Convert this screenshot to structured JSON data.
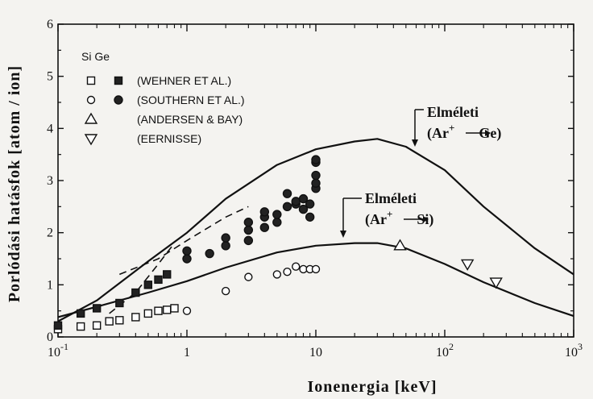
{
  "chart_data": {
    "type": "scatter",
    "xscale": "log",
    "xlim": [
      0.1,
      1000
    ],
    "ylim": [
      0,
      6
    ],
    "xlabel": "Ionenergia  [keV]",
    "ylabel": "Porlódási hatásfok  [atom / ion]",
    "x_ticks": [
      {
        "value": 0.1,
        "base": "10",
        "exp": "-1"
      },
      {
        "value": 1,
        "base": "1",
        "exp": ""
      },
      {
        "value": 10,
        "base": "10",
        "exp": ""
      },
      {
        "value": 100,
        "base": "10",
        "exp": "2"
      },
      {
        "value": 1000,
        "base": "10",
        "exp": "3"
      }
    ],
    "y_ticks": [
      "0",
      "1",
      "2",
      "3",
      "4",
      "5",
      "6"
    ],
    "legend": {
      "header": "Si Ge",
      "entries": [
        {
          "label": "(WEHNER ET AL.)",
          "markers": [
            "open-square",
            "filled-square"
          ]
        },
        {
          "label": "(SOUTHERN ET AL.)",
          "markers": [
            "open-circle",
            "filled-circle"
          ]
        },
        {
          "label": "(ANDERSEN & BAY)",
          "markers": [
            "open-triangle-up"
          ]
        },
        {
          "label": "(EERNISSE)",
          "markers": [
            "open-triangle-down"
          ]
        }
      ]
    },
    "series": [
      {
        "name": "(WEHNER ET AL.)",
        "target": "Si",
        "marker": "open-square",
        "points": [
          [
            0.1,
            0.15
          ],
          [
            0.15,
            0.2
          ],
          [
            0.2,
            0.22
          ],
          [
            0.25,
            0.3
          ],
          [
            0.3,
            0.32
          ],
          [
            0.4,
            0.38
          ],
          [
            0.5,
            0.45
          ],
          [
            0.6,
            0.5
          ],
          [
            0.7,
            0.52
          ],
          [
            0.8,
            0.55
          ]
        ]
      },
      {
        "name": "(WEHNER ET AL.)",
        "target": "Ge",
        "marker": "filled-square",
        "points": [
          [
            0.1,
            0.22
          ],
          [
            0.15,
            0.45
          ],
          [
            0.2,
            0.55
          ],
          [
            0.3,
            0.65
          ],
          [
            0.4,
            0.85
          ],
          [
            0.5,
            1.0
          ],
          [
            0.6,
            1.1
          ],
          [
            0.7,
            1.2
          ]
        ]
      },
      {
        "name": "(SOUTHERN ET AL.)",
        "target": "Si",
        "marker": "open-circle",
        "points": [
          [
            1,
            0.5
          ],
          [
            2,
            0.88
          ],
          [
            3,
            1.15
          ],
          [
            5,
            1.2
          ],
          [
            6,
            1.25
          ],
          [
            7,
            1.35
          ],
          [
            8,
            1.3
          ],
          [
            9,
            1.3
          ],
          [
            10,
            1.3
          ]
        ]
      },
      {
        "name": "(SOUTHERN ET AL.)",
        "target": "Ge",
        "marker": "filled-circle",
        "points": [
          [
            1,
            1.5
          ],
          [
            1,
            1.65
          ],
          [
            1.5,
            1.6
          ],
          [
            2,
            1.75
          ],
          [
            2,
            1.9
          ],
          [
            3,
            1.85
          ],
          [
            3,
            2.05
          ],
          [
            3,
            2.2
          ],
          [
            4,
            2.1
          ],
          [
            4,
            2.3
          ],
          [
            4,
            2.4
          ],
          [
            5,
            2.2
          ],
          [
            5,
            2.35
          ],
          [
            6,
            2.5
          ],
          [
            6,
            2.75
          ],
          [
            7,
            2.55
          ],
          [
            7,
            2.6
          ],
          [
            8,
            2.45
          ],
          [
            8,
            2.65
          ],
          [
            9,
            2.3
          ],
          [
            9,
            2.55
          ],
          [
            10,
            2.85
          ],
          [
            10,
            2.95
          ],
          [
            10,
            3.1
          ],
          [
            10,
            3.35
          ],
          [
            10,
            3.4
          ]
        ]
      },
      {
        "name": "(ANDERSEN & BAY)",
        "target": "Si",
        "marker": "open-triangle-up",
        "points": [
          [
            45,
            1.75
          ]
        ]
      },
      {
        "name": "(EERNISSE)",
        "target": "Ge",
        "marker": "open-triangle-down",
        "points": [
          [
            150,
            1.4
          ],
          [
            250,
            1.05
          ]
        ]
      }
    ],
    "curves": [
      {
        "name": "Elméleti Ge",
        "style": "solid",
        "points": [
          [
            0.1,
            0.3
          ],
          [
            0.2,
            0.7
          ],
          [
            0.5,
            1.45
          ],
          [
            1,
            2.0
          ],
          [
            2,
            2.65
          ],
          [
            5,
            3.3
          ],
          [
            10,
            3.6
          ],
          [
            20,
            3.75
          ],
          [
            30,
            3.8
          ],
          [
            50,
            3.65
          ],
          [
            100,
            3.2
          ],
          [
            200,
            2.5
          ],
          [
            500,
            1.7
          ],
          [
            1000,
            1.2
          ]
        ]
      },
      {
        "name": "Elméleti Si",
        "style": "solid",
        "points": [
          [
            0.1,
            0.38
          ],
          [
            0.2,
            0.58
          ],
          [
            0.5,
            0.85
          ],
          [
            1,
            1.07
          ],
          [
            2,
            1.33
          ],
          [
            5,
            1.62
          ],
          [
            10,
            1.75
          ],
          [
            20,
            1.8
          ],
          [
            30,
            1.8
          ],
          [
            50,
            1.7
          ],
          [
            100,
            1.4
          ],
          [
            200,
            1.05
          ],
          [
            500,
            0.65
          ],
          [
            1000,
            0.4
          ]
        ]
      },
      {
        "name": "dashed-a",
        "style": "dashed",
        "points": [
          [
            0.25,
            0.45
          ],
          [
            0.4,
            0.85
          ],
          [
            0.6,
            1.4
          ],
          [
            0.8,
            1.8
          ]
        ]
      },
      {
        "name": "dashed-b",
        "style": "dashed",
        "points": [
          [
            0.3,
            1.2
          ],
          [
            0.6,
            1.5
          ],
          [
            1,
            1.85
          ],
          [
            2,
            2.3
          ],
          [
            3,
            2.5
          ]
        ]
      }
    ],
    "annotations": [
      {
        "id": "ge",
        "line1": "Elméleti",
        "line2_prefix": "(Ar",
        "line2_sup": "+",
        "line2_suffix": "Ge)",
        "anchor_x": 25,
        "anchor_y": 3.78
      },
      {
        "id": "si",
        "line1": "Elméleti",
        "line2_prefix": "(Ar",
        "line2_sup": "+",
        "line2_suffix": "Si)",
        "anchor_x": 20,
        "anchor_y": 1.8
      }
    ]
  }
}
